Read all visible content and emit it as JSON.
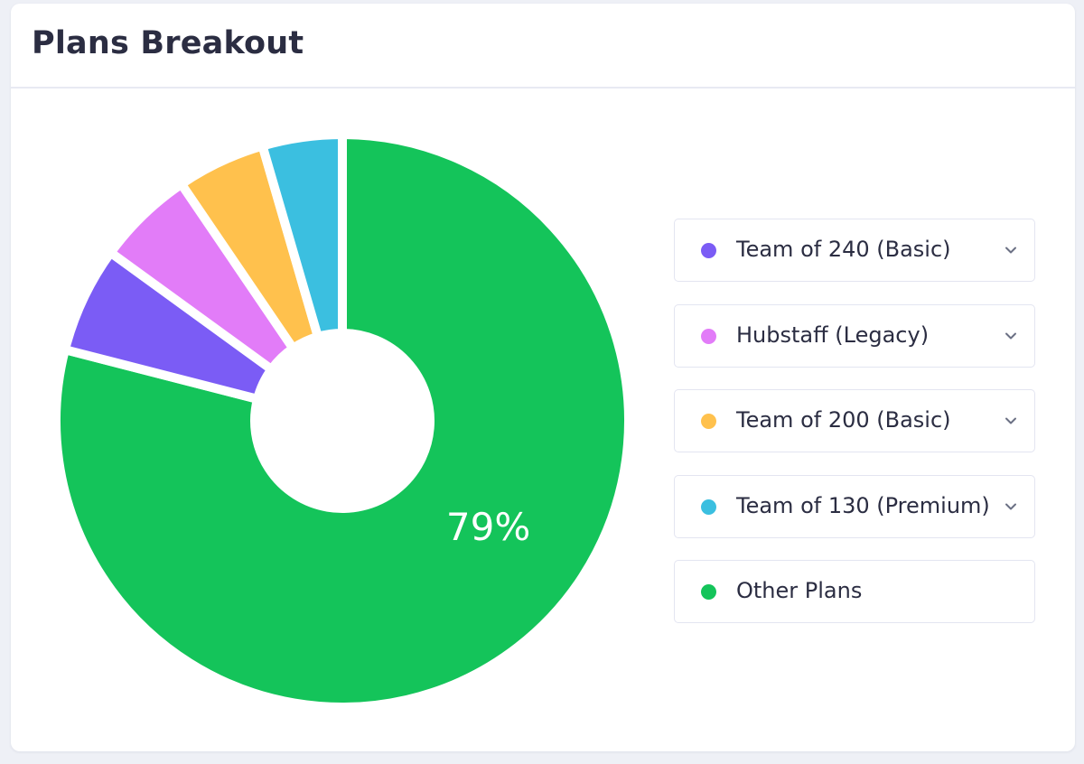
{
  "card": {
    "title": "Plans Breakout"
  },
  "chart_data": {
    "type": "pie",
    "style": "donut",
    "title": "Plans Breakout",
    "legend_position": "right",
    "categories": [
      "Team of 240 (Basic)",
      "Hubstaff (Legacy)",
      "Team of 200 (Basic)",
      "Team of 130 (Premium)",
      "Other Plans"
    ],
    "values": [
      6,
      5.5,
      5,
      4.5,
      79
    ],
    "unit": "%",
    "colors": [
      "#7b5cf5",
      "#e27cf8",
      "#ffc14d",
      "#3bbfe0",
      "#14c45a"
    ],
    "data_labels": [
      {
        "series": "Other Plans",
        "text": "79%"
      }
    ]
  },
  "legend": {
    "items": [
      {
        "label": "Team of 240 (Basic)",
        "color": "#7b5cf5",
        "expandable": true,
        "icon": "chevron-down-icon"
      },
      {
        "label": "Hubstaff (Legacy)",
        "color": "#e27cf8",
        "expandable": true,
        "icon": "chevron-down-icon"
      },
      {
        "label": "Team of 200 (Basic)",
        "color": "#ffc14d",
        "expandable": true,
        "icon": "chevron-down-icon"
      },
      {
        "label": "Team of 130 (Premium)",
        "color": "#3bbfe0",
        "expandable": true,
        "icon": "chevron-down-icon"
      },
      {
        "label": "Other Plans",
        "color": "#14c45a",
        "expandable": false
      }
    ]
  }
}
